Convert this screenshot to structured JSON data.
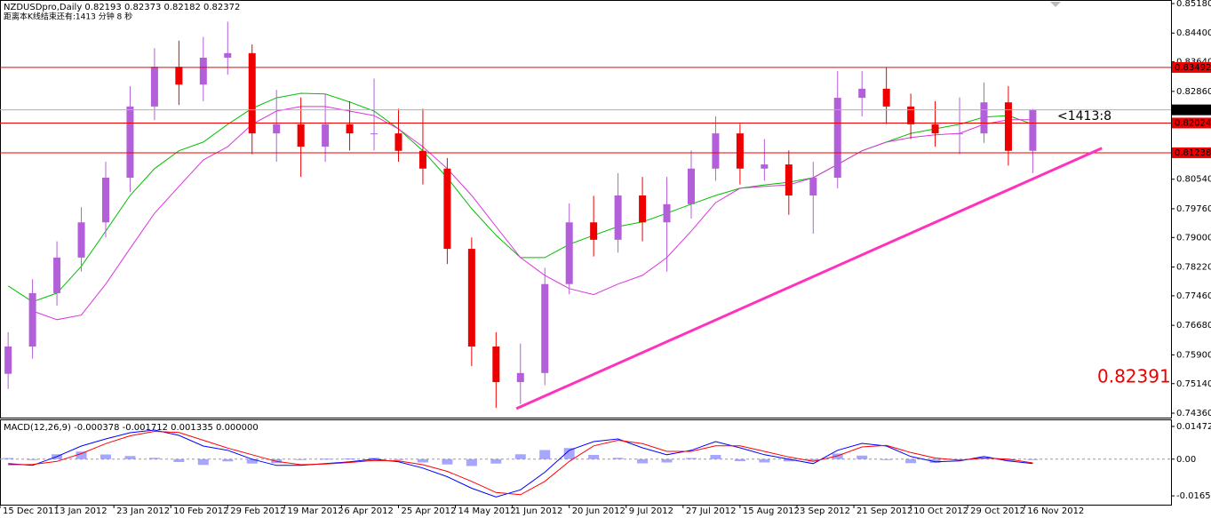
{
  "chart_data": [
    {
      "type": "candlestick",
      "title": "NZDUSDpro,Daily  0.82193 0.82373 0.82182 0.82372",
      "subtitle": "距离本K线结束还有:1413 分钟 8 秒",
      "x": [
        2,
        8,
        14,
        20,
        26,
        32,
        38,
        44,
        50,
        56,
        62,
        68,
        74,
        80,
        86,
        92,
        98,
        104,
        110,
        116,
        122,
        128,
        134,
        140,
        146,
        152,
        158,
        164,
        170,
        176,
        182,
        188,
        194,
        200,
        206,
        212,
        218,
        224,
        230,
        236,
        242,
        248,
        254
      ],
      "open": [
        0.754,
        0.7612,
        0.7753,
        0.7847,
        0.794,
        0.8058,
        0.8246,
        0.8351,
        0.8304,
        0.8375,
        0.8387,
        0.8175,
        0.8199,
        0.814,
        0.8199,
        0.8175,
        0.8175,
        0.8129,
        0.8082,
        0.787,
        0.7612,
        0.7518,
        0.7542,
        0.7777,
        0.794,
        0.7894,
        0.8011,
        0.794,
        0.7988,
        0.8082,
        0.8175,
        0.8082,
        0.8093,
        0.8011,
        0.8058,
        0.8269,
        0.8293,
        0.8246,
        0.8199,
        0.8175,
        0.8175,
        0.8257,
        0.8129
      ],
      "high": [
        0.765,
        0.779,
        0.789,
        0.798,
        0.81,
        0.83,
        0.84,
        0.842,
        0.843,
        0.847,
        0.841,
        0.829,
        0.827,
        0.828,
        0.826,
        0.832,
        0.824,
        0.824,
        0.811,
        0.79,
        0.765,
        0.762,
        0.782,
        0.799,
        0.801,
        0.807,
        0.806,
        0.806,
        0.813,
        0.822,
        0.82,
        0.816,
        0.813,
        0.81,
        0.834,
        0.834,
        0.835,
        0.828,
        0.826,
        0.827,
        0.831,
        0.83,
        0.824
      ],
      "low": [
        0.75,
        0.758,
        0.772,
        0.781,
        0.79,
        0.802,
        0.821,
        0.825,
        0.826,
        0.833,
        0.812,
        0.81,
        0.806,
        0.81,
        0.813,
        0.813,
        0.81,
        0.804,
        0.783,
        0.756,
        0.745,
        0.746,
        0.751,
        0.775,
        0.785,
        0.786,
        0.789,
        0.781,
        0.795,
        0.805,
        0.804,
        0.805,
        0.796,
        0.791,
        0.803,
        0.822,
        0.82,
        0.816,
        0.814,
        0.812,
        0.815,
        0.809,
        0.807
      ],
      "close": [
        0.7612,
        0.7753,
        0.7847,
        0.794,
        0.8058,
        0.8246,
        0.8351,
        0.8304,
        0.8375,
        0.8387,
        0.8175,
        0.8199,
        0.814,
        0.8199,
        0.8175,
        0.8175,
        0.8129,
        0.8082,
        0.787,
        0.7612,
        0.7518,
        0.7542,
        0.7777,
        0.794,
        0.7894,
        0.8011,
        0.794,
        0.7988,
        0.8082,
        0.8175,
        0.8082,
        0.8093,
        0.8011,
        0.8058,
        0.8269,
        0.8293,
        0.8246,
        0.8199,
        0.8175,
        0.8175,
        0.8257,
        0.8129,
        0.8237
      ],
      "up_color": "#b35fd9",
      "down_color": "#ee0000",
      "ma": [
        {
          "color": "#00c000",
          "values": [
            0.7772,
            0.773,
            0.7753,
            0.7824,
            0.7917,
            0.8011,
            0.8082,
            0.8129,
            0.8152,
            0.8199,
            0.8241,
            0.8269,
            0.8281,
            0.8279,
            0.8258,
            0.8234,
            0.8187,
            0.8129,
            0.8058,
            0.7976,
            0.7906,
            0.7847,
            0.7847,
            0.7882,
            0.7906,
            0.7929,
            0.7941,
            0.7964,
            0.7988,
            0.8011,
            0.803,
            0.8039,
            0.8046,
            0.8058,
            0.8093,
            0.8129,
            0.8152,
            0.8175,
            0.8187,
            0.8199,
            0.8218,
            0.8222,
            0.8199
          ]
        },
        {
          "color": "#dd33dd",
          "values": [
            null,
            0.7706,
            0.7683,
            0.7695,
            0.7777,
            0.7871,
            0.7964,
            0.8035,
            0.8105,
            0.814,
            0.8199,
            0.8234,
            0.8246,
            0.8246,
            0.8234,
            0.8222,
            0.8187,
            0.814,
            0.8082,
            0.8011,
            0.7929,
            0.7847,
            0.78,
            0.7765,
            0.7749,
            0.7777,
            0.78,
            0.7847,
            0.7917,
            0.7992,
            0.803,
            0.8035,
            0.8039,
            0.8058,
            0.8093,
            0.8129,
            0.8152,
            0.8164,
            0.8171,
            0.8175,
            0.8199,
            0.8211,
            0.8211
          ]
        }
      ],
      "levels": [
        0.83492,
        0.82024,
        0.81238
      ],
      "level_color": "#ee0000",
      "current": 0.82372,
      "trendline": {
        "x": [
          127,
          271
        ],
        "y": [
          0.7448,
          0.8136
        ],
        "color": "#ff33bb"
      },
      "annotations": [
        "<1413:8",
        "0.82391"
      ],
      "xlim": [
        0,
        288
      ],
      "xticks": [
        {
          "value": 0,
          "label": "15 Dec 2011"
        },
        {
          "value": 14,
          "label": "3 Jan 2012"
        },
        {
          "value": 28,
          "label": "23 Jan 2012"
        },
        {
          "value": 42,
          "label": "10 Feb 2012"
        },
        {
          "value": 56,
          "label": "29 Feb 2012"
        },
        {
          "value": 70,
          "label": "19 Mar 2012"
        },
        {
          "value": 84,
          "label": "6 Apr 2012"
        },
        {
          "value": 98,
          "label": "25 Apr 2012"
        },
        {
          "value": 112,
          "label": "14 May 2012"
        },
        {
          "value": 126,
          "label": "1 Jun 2012"
        },
        {
          "value": 140,
          "label": "20 Jun 2012"
        },
        {
          "value": 154,
          "label": "9 Jul 2012"
        },
        {
          "value": 168,
          "label": "27 Jul 2012"
        },
        {
          "value": 182,
          "label": "15 Aug 2012"
        },
        {
          "value": 196,
          "label": "3 Sep 2012"
        },
        {
          "value": 210,
          "label": "21 Sep 2012"
        },
        {
          "value": 224,
          "label": "10 Oct 2012"
        },
        {
          "value": 238,
          "label": "29 Oct 2012"
        },
        {
          "value": 252,
          "label": "16 Nov 2012"
        }
      ],
      "ylim": [
        0.7436,
        0.8518
      ],
      "yticks": [
        {
          "value": 0.8518,
          "label": "0.85180"
        },
        {
          "value": 0.844,
          "label": "0.84400"
        },
        {
          "value": 0.8364,
          "label": "0.83640"
        },
        {
          "value": 0.8286,
          "label": "0.82860"
        },
        {
          "value": 0.8054,
          "label": "0.80540"
        },
        {
          "value": 0.7976,
          "label": "0.79760"
        },
        {
          "value": 0.79,
          "label": "0.79000"
        },
        {
          "value": 0.7822,
          "label": "0.78220"
        },
        {
          "value": 0.7746,
          "label": "0.77460"
        },
        {
          "value": 0.7668,
          "label": "0.76680"
        },
        {
          "value": 0.759,
          "label": "0.75900"
        },
        {
          "value": 0.7514,
          "label": "0.75140"
        },
        {
          "value": 0.7436,
          "label": "0.74360"
        }
      ]
    },
    {
      "type": "macd",
      "title": "MACD(12,26,9) -0.000378 -0.001712 0.001335 0.000000",
      "macd": {
        "color": "#0000ff",
        "values": [
          -0.002,
          -0.0028,
          0.0012,
          0.0059,
          0.0091,
          0.0119,
          0.0131,
          0.0107,
          0.0059,
          0.004,
          0,
          -0.0028,
          -0.0028,
          -0.002,
          -0.0012,
          0,
          -0.0012,
          -0.004,
          -0.0079,
          -0.0131,
          -0.017,
          -0.0138,
          -0.0059,
          0.004,
          0.0079,
          0.0091,
          0.0051,
          0.002,
          0.004,
          0.0079,
          0.0051,
          0.002,
          0,
          -0.002,
          0.004,
          0.0071,
          0.0059,
          0.0012,
          -0.0012,
          -0.0008,
          0.0012,
          -0.0008,
          -0.002
        ]
      },
      "signal": {
        "color": "#ff0000",
        "values": [
          -0.0025,
          -0.0024,
          -0.001,
          0.0025,
          0.007,
          0.0105,
          0.0125,
          0.012,
          0.0085,
          0.005,
          0.002,
          -0.001,
          -0.0025,
          -0.0022,
          -0.0015,
          -0.0006,
          -0.0008,
          -0.0025,
          -0.0055,
          -0.01,
          -0.015,
          -0.016,
          -0.01,
          -0.001,
          0.006,
          0.0085,
          0.007,
          0.0035,
          0.0035,
          0.006,
          0.006,
          0.0035,
          0.001,
          -0.001,
          0.0015,
          0.0055,
          0.0062,
          0.003,
          0.0005,
          -0.0005,
          0.0005,
          0.0,
          -0.0017
        ]
      },
      "histogram": {
        "color": "#8080ff",
        "values": [
          0.0005,
          -0.0004,
          0.0022,
          0.0034,
          0.0021,
          0.0014,
          0.0006,
          -0.0013,
          -0.0026,
          -0.001,
          -0.002,
          -0.0018,
          -0.0003,
          0.0002,
          0.0003,
          0.0006,
          -0.0004,
          -0.0015,
          -0.0024,
          -0.0031,
          -0.002,
          0.0022,
          0.0041,
          0.005,
          0.0019,
          0.0006,
          -0.0019,
          -0.0015,
          0.0005,
          0.0019,
          -0.0009,
          -0.0015,
          -0.001,
          -0.001,
          0.0025,
          0.0016,
          -0.0003,
          -0.0018,
          -0.0017,
          -0.0003,
          0.0007,
          -0.0008,
          -0.0003
        ]
      },
      "ylim": [
        -0.0205,
        0.0175
      ],
      "yticks": [
        0.014728,
        {
          "value": 0,
          "label": "0.00"
        },
        -0.016528
      ]
    }
  ]
}
